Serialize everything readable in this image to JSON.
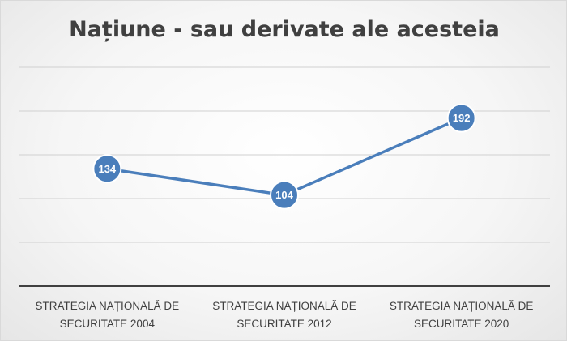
{
  "chart_data": {
    "type": "line",
    "title": "Națiune - sau derivate ale acesteia",
    "xlabel": "",
    "ylabel": "",
    "categories": [
      [
        "STRATEGIA NAȚIONALĂ DE",
        "SECURITATE 2004"
      ],
      [
        "STRATEGIA NAȚIONALĂ DE",
        "SECURITATE 2012"
      ],
      [
        "STRATEGIA NAȚIONALĂ DE",
        "SECURITATE 2020"
      ]
    ],
    "series": [
      {
        "values": [
          134,
          104,
          192
        ],
        "color": "#4a7ebb"
      }
    ],
    "ylim": [
      0,
      250
    ],
    "grid": true,
    "legend": "none"
  }
}
